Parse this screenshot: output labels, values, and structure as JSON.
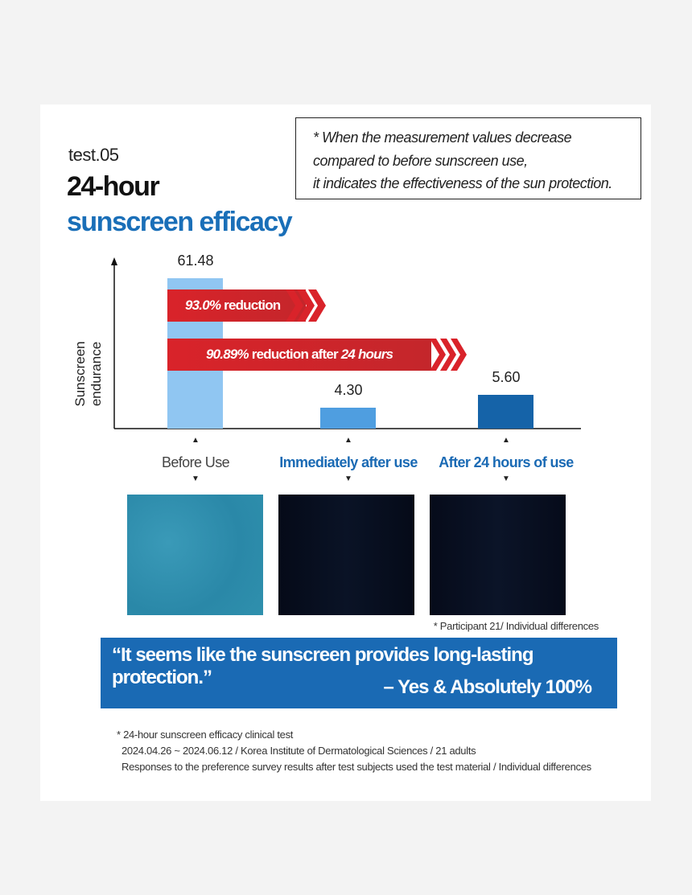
{
  "note": {
    "line1": "* When the measurement values decrease",
    "line2": "compared to before sunscreen use,",
    "line3": "it indicates the effectiveness of the sun protection."
  },
  "heading": {
    "test": "test.05",
    "title1": "24-hour",
    "title2": "sunscreen efficacy"
  },
  "chart_data": {
    "type": "bar",
    "ylabel": "Sunscreen endurance",
    "categories": [
      "Before Use",
      "Immediately after use",
      "After 24 hours of use"
    ],
    "values": [
      61.48,
      4.3,
      5.6
    ],
    "value_labels": [
      "61.48",
      "4.30",
      "5.60"
    ],
    "colors": [
      "#90c6f2",
      "#4f9ee0",
      "#1563a8"
    ],
    "category_colors": [
      "#444444",
      "#1a6ab4",
      "#1a6ab4"
    ],
    "annotations": [
      {
        "pct": "93.0%",
        "text": " reduction",
        "suffix": ""
      },
      {
        "pct": "90.89%",
        "text": " reduction after ",
        "suffix": "24 hours"
      }
    ]
  },
  "image_note": "* Participant 21/ Individual differences",
  "quote": {
    "text": "“It seems like the sunscreen provides long-lasting protection.”",
    "answer": "– Yes & Absolutely 100%"
  },
  "footnote": {
    "line1": "* 24-hour sunscreen efficacy clinical test",
    "line2": "2024.04.26 ~ 2024.06.12 / Korea Institute of Dermatological Sciences / 21 adults",
    "line3": "Responses to the preference survey results after test subjects used the test material / Individual differences"
  }
}
